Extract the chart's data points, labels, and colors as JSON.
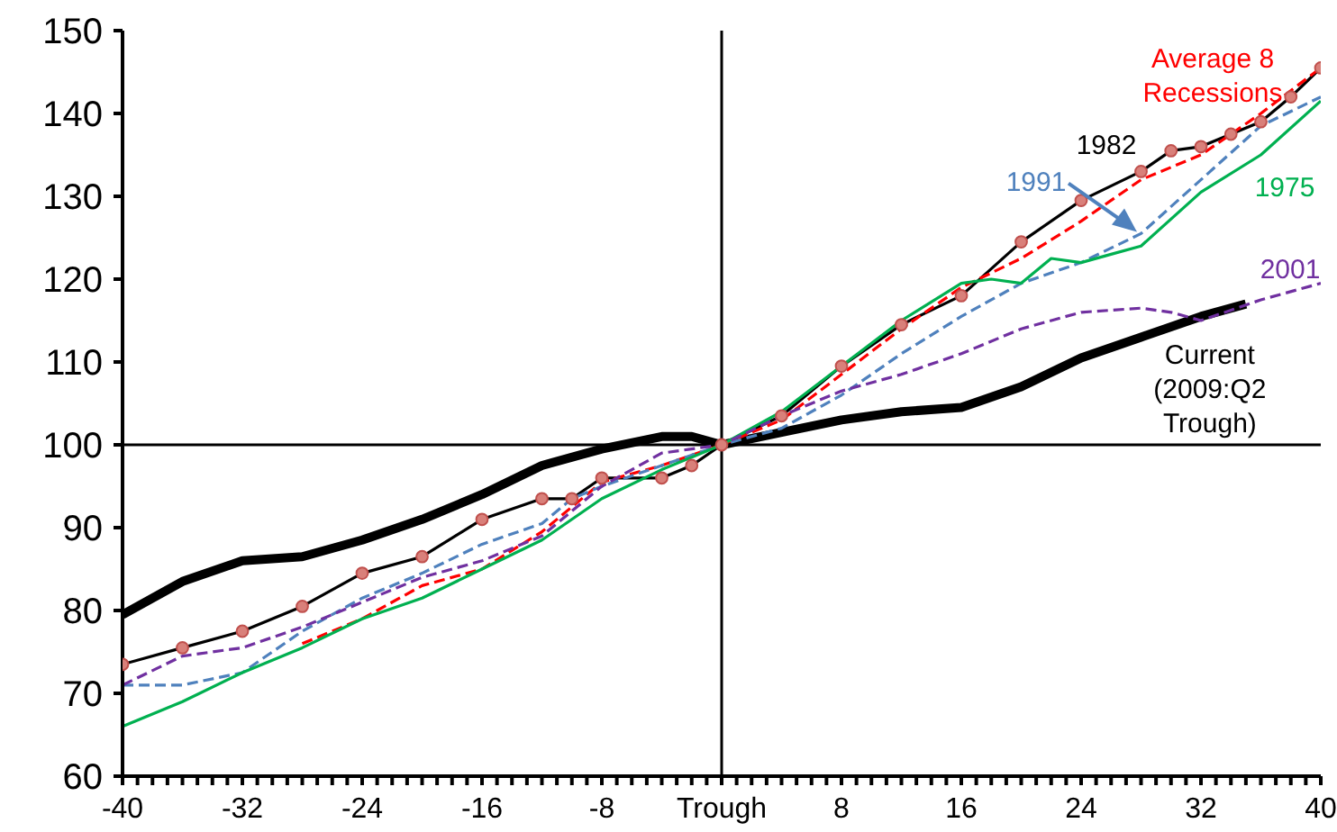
{
  "chart_data": {
    "type": "line",
    "xlim": [
      -40,
      40
    ],
    "ylim": [
      60,
      150
    ],
    "yticks": [
      60,
      70,
      80,
      90,
      100,
      110,
      120,
      130,
      140,
      150
    ],
    "xticks": [
      -40,
      {
        "value": -39,
        "label": null
      },
      {
        "value": -38,
        "label": null
      },
      {
        "value": -37,
        "label": null
      },
      {
        "value": -36,
        "label": null
      },
      {
        "value": -35,
        "label": null
      },
      {
        "value": -34,
        "label": null
      },
      {
        "value": -33,
        "label": null
      },
      -32,
      {
        "value": -31,
        "label": null
      },
      {
        "value": -30,
        "label": null
      },
      {
        "value": -29,
        "label": null
      },
      {
        "value": -28,
        "label": null
      },
      {
        "value": -27,
        "label": null
      },
      {
        "value": -26,
        "label": null
      },
      {
        "value": -25,
        "label": null
      },
      -24,
      {
        "value": -23,
        "label": null
      },
      {
        "value": -22,
        "label": null
      },
      {
        "value": -21,
        "label": null
      },
      {
        "value": -20,
        "label": null
      },
      {
        "value": -19,
        "label": null
      },
      {
        "value": -18,
        "label": null
      },
      {
        "value": -17,
        "label": null
      },
      -16,
      {
        "value": -15,
        "label": null
      },
      {
        "value": -14,
        "label": null
      },
      {
        "value": -13,
        "label": null
      },
      {
        "value": -12,
        "label": null
      },
      {
        "value": -11,
        "label": null
      },
      {
        "value": -10,
        "label": null
      },
      {
        "value": -9,
        "label": null
      },
      -8,
      {
        "value": -7,
        "label": null
      },
      {
        "value": -6,
        "label": null
      },
      {
        "value": -5,
        "label": null
      },
      {
        "value": -4,
        "label": null
      },
      {
        "value": -3,
        "label": null
      },
      {
        "value": -2,
        "label": null
      },
      {
        "value": -1,
        "label": null
      },
      {
        "value": 0,
        "label": "Trough"
      },
      {
        "value": 1,
        "label": null
      },
      {
        "value": 2,
        "label": null
      },
      {
        "value": 3,
        "label": null
      },
      {
        "value": 4,
        "label": null
      },
      {
        "value": 5,
        "label": null
      },
      {
        "value": 6,
        "label": null
      },
      {
        "value": 7,
        "label": null
      },
      8,
      {
        "value": 9,
        "label": null
      },
      {
        "value": 10,
        "label": null
      },
      {
        "value": 11,
        "label": null
      },
      {
        "value": 12,
        "label": null
      },
      {
        "value": 13,
        "label": null
      },
      {
        "value": 14,
        "label": null
      },
      {
        "value": 15,
        "label": null
      },
      16,
      {
        "value": 17,
        "label": null
      },
      {
        "value": 18,
        "label": null
      },
      {
        "value": 19,
        "label": null
      },
      {
        "value": 20,
        "label": null
      },
      {
        "value": 21,
        "label": null
      },
      {
        "value": 22,
        "label": null
      },
      {
        "value": 23,
        "label": null
      },
      24,
      {
        "value": 25,
        "label": null
      },
      {
        "value": 26,
        "label": null
      },
      {
        "value": 27,
        "label": null
      },
      {
        "value": 28,
        "label": null
      },
      {
        "value": 29,
        "label": null
      },
      {
        "value": 30,
        "label": null
      },
      {
        "value": 31,
        "label": null
      },
      32,
      {
        "value": 33,
        "label": null
      },
      {
        "value": 34,
        "label": null
      },
      {
        "value": 35,
        "label": null
      },
      {
        "value": 36,
        "label": null
      },
      {
        "value": 37,
        "label": null
      },
      {
        "value": 38,
        "label": null
      },
      {
        "value": 39,
        "label": null
      },
      40
    ],
    "ref_lines": [
      {
        "axis": "x",
        "value": 0,
        "color": "#000000"
      },
      {
        "axis": "y",
        "value": 100,
        "color": "#000000"
      }
    ],
    "series": [
      {
        "name": "Current (2009:Q2 Trough)",
        "color": "#000000",
        "line_style": "solid",
        "marker": "none",
        "x": [
          -40,
          -36,
          -32,
          -28,
          -24,
          -20,
          -16,
          -12,
          -8,
          -4,
          -2,
          0,
          4,
          8,
          12,
          16,
          20,
          24,
          28,
          32,
          35
        ],
        "values": [
          79.5,
          83.5,
          86,
          86.5,
          88.5,
          91,
          94,
          97.5,
          99.5,
          101,
          101,
          100,
          101.5,
          103,
          104,
          104.5,
          107,
          110.5,
          113,
          115.5,
          117
        ]
      },
      {
        "name": "1982",
        "color": "#000000",
        "line_style": "solid",
        "marker": "circle",
        "x": [
          -40,
          -36,
          -32,
          -28,
          -24,
          -20,
          -16,
          -12,
          -10,
          -8,
          -4,
          -2,
          0,
          4,
          8,
          12,
          16,
          20,
          24,
          28,
          30,
          32,
          34,
          36,
          38,
          40
        ],
        "values": [
          73.5,
          75.5,
          77.5,
          80.5,
          84.5,
          86.5,
          91,
          93.5,
          93.5,
          96,
          96,
          97.5,
          100,
          103.5,
          109.5,
          114.5,
          118,
          124.5,
          129.5,
          133,
          135.5,
          136,
          137.5,
          139,
          142,
          145.5
        ]
      },
      {
        "name": "Average 8 Recessions",
        "color": "#ff0000",
        "line_style": "dashed",
        "marker": "none",
        "x": [
          -28,
          -24,
          -20,
          -16,
          -12,
          -8,
          -4,
          0,
          4,
          8,
          12,
          16,
          20,
          24,
          28,
          32,
          36,
          40
        ],
        "values": [
          76,
          79,
          83,
          85,
          89.5,
          95.5,
          97.5,
          100,
          103,
          108.5,
          114,
          119,
          122.5,
          127,
          132,
          135,
          140,
          145.5
        ]
      },
      {
        "name": "1991",
        "color": "#4f81bd",
        "line_style": "dashed",
        "marker": "none",
        "x": [
          -40,
          -36,
          -32,
          -28,
          -24,
          -20,
          -16,
          -12,
          -10,
          -8,
          -4,
          0,
          4,
          8,
          12,
          16,
          20,
          24,
          28,
          32,
          36,
          40
        ],
        "values": [
          71,
          71,
          72.5,
          77.5,
          81.5,
          84.5,
          88,
          90.5,
          93.5,
          95,
          97.5,
          100,
          102,
          106,
          111,
          115.5,
          119.5,
          122,
          125.5,
          132,
          138.5,
          142
        ]
      },
      {
        "name": "1975",
        "color": "#00b050",
        "line_style": "solid",
        "marker": "none",
        "x": [
          -40,
          -36,
          -32,
          -28,
          -24,
          -20,
          -16,
          -12,
          -8,
          -4,
          0,
          4,
          8,
          12,
          16,
          18,
          20,
          22,
          24,
          26,
          28,
          32,
          36,
          40
        ],
        "values": [
          66,
          69,
          72.5,
          75.5,
          79,
          81.5,
          85,
          88.5,
          93.5,
          97,
          100,
          104,
          109.5,
          115,
          119.5,
          120,
          119.5,
          122.5,
          122,
          123,
          124,
          130.5,
          135,
          141.5
        ]
      },
      {
        "name": "2001",
        "color": "#7030a0",
        "line_style": "dashed",
        "marker": "none",
        "x": [
          -40,
          -36,
          -32,
          -28,
          -24,
          -20,
          -16,
          -12,
          -8,
          -4,
          0,
          4,
          8,
          12,
          16,
          20,
          24,
          28,
          30,
          32,
          36,
          40
        ],
        "values": [
          71,
          74.5,
          75.5,
          78,
          81,
          84,
          86,
          89,
          95,
          99,
          100,
          103.5,
          106.5,
          108.5,
          111,
          114,
          116,
          116.5,
          116,
          115,
          117.5,
          119.5
        ]
      }
    ]
  }
}
